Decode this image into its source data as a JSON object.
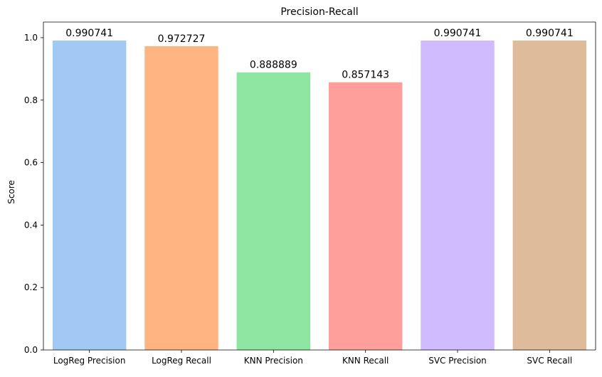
{
  "chart_data": {
    "type": "bar",
    "title": "Precision-Recall",
    "xlabel": "",
    "ylabel": "Score",
    "ylim": [
      0,
      1.05
    ],
    "yticks": [
      "0.0",
      "0.2",
      "0.4",
      "0.6",
      "0.8",
      "1.0"
    ],
    "grid": false,
    "categories": [
      "LogReg Precision",
      "LogReg Recall",
      "KNN Precision",
      "KNN Recall",
      "SVC Precision",
      "SVC Recall"
    ],
    "values": [
      0.990741,
      0.972727,
      0.888889,
      0.857143,
      0.990741,
      0.990741
    ],
    "value_labels": [
      "0.990741",
      "0.972727",
      "0.888889",
      "0.857143",
      "0.990741",
      "0.990741"
    ],
    "colors": [
      "#a1c9f4",
      "#ffb482",
      "#8de5a1",
      "#ff9f9b",
      "#d0bbff",
      "#debb9b"
    ]
  }
}
